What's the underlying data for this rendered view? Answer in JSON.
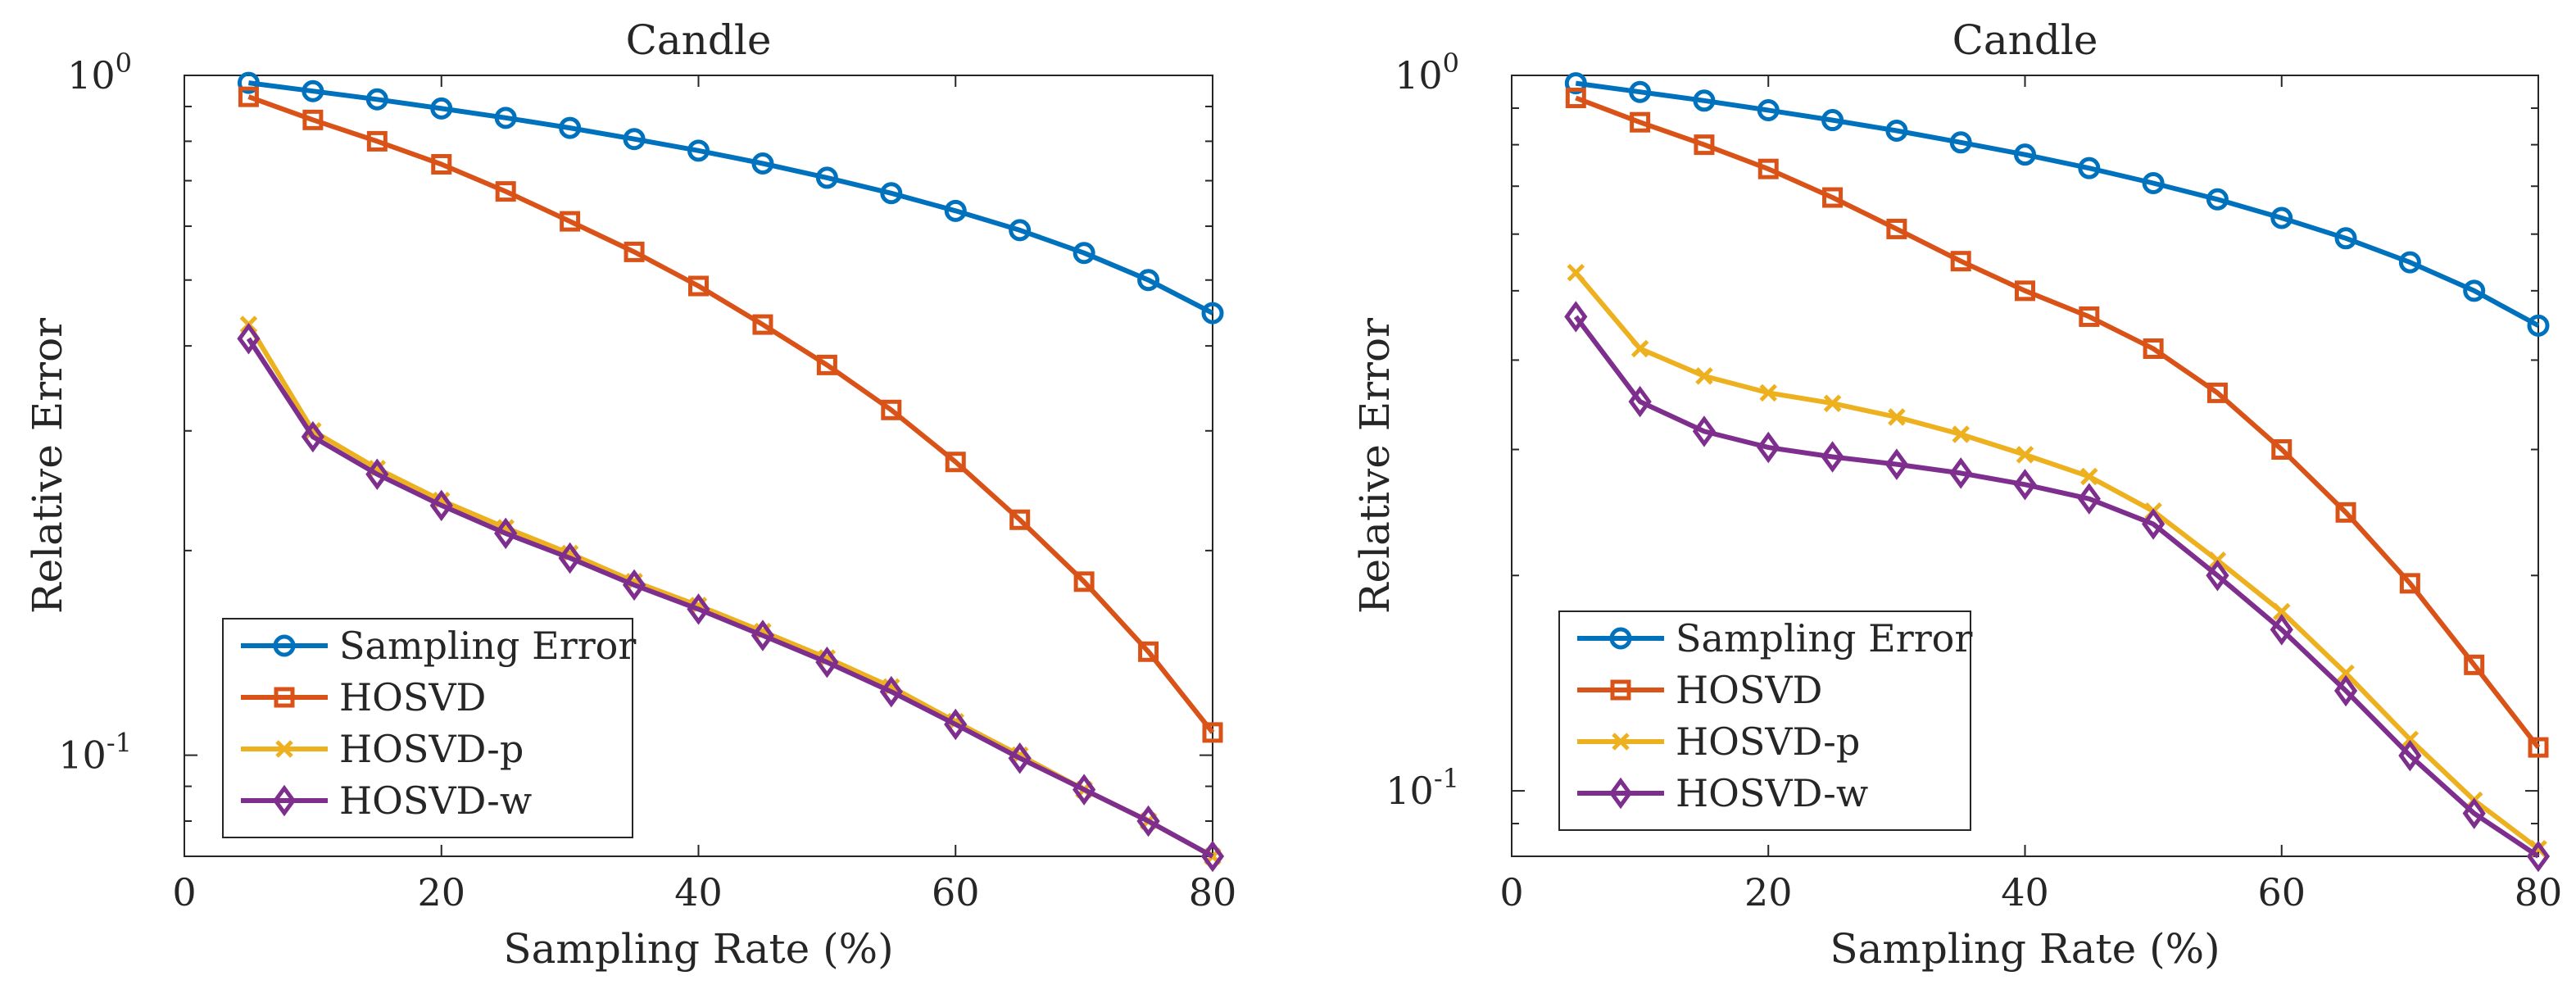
{
  "chart_data": [
    {
      "type": "line",
      "title": "Candle",
      "xlabel": "Sampling Rate (%)",
      "ylabel": "Relative Error",
      "yscale": "log",
      "xlim": [
        0,
        80
      ],
      "ylim": [
        0.071,
        1.0
      ],
      "xticks": [
        0,
        20,
        40,
        60,
        80
      ],
      "xtick_labels": [
        "0",
        "20",
        "40",
        "60",
        "80"
      ],
      "ytick_labels": [
        {
          "base": "10",
          "exp": "0"
        },
        {
          "base": "10",
          "exp": "-1"
        }
      ],
      "legend_position": "bottom-left",
      "x": [
        5,
        10,
        15,
        20,
        25,
        30,
        35,
        40,
        45,
        50,
        55,
        60,
        65,
        70,
        75,
        80
      ],
      "series": [
        {
          "name": "Sampling Error",
          "color": "#0072BD",
          "marker": "circle",
          "values": [
            0.975,
            0.948,
            0.922,
            0.894,
            0.866,
            0.837,
            0.806,
            0.775,
            0.742,
            0.707,
            0.671,
            0.632,
            0.592,
            0.548,
            0.5,
            0.447
          ]
        },
        {
          "name": "HOSVD",
          "color": "#D95319",
          "marker": "square",
          "values": [
            0.93,
            0.86,
            0.8,
            0.74,
            0.675,
            0.61,
            0.55,
            0.49,
            0.43,
            0.375,
            0.322,
            0.27,
            0.222,
            0.18,
            0.142,
            0.108
          ]
        },
        {
          "name": "HOSVD-p",
          "color": "#EDB120",
          "marker": "x",
          "values": [
            0.43,
            0.3,
            0.264,
            0.237,
            0.216,
            0.198,
            0.18,
            0.166,
            0.152,
            0.139,
            0.126,
            0.112,
            0.1,
            0.089,
            0.08,
            0.071
          ]
        },
        {
          "name": "HOSVD-w",
          "color": "#7E2F8E",
          "marker": "diamond",
          "values": [
            0.41,
            0.294,
            0.259,
            0.233,
            0.212,
            0.195,
            0.178,
            0.164,
            0.15,
            0.137,
            0.124,
            0.111,
            0.099,
            0.089,
            0.08,
            0.071
          ]
        }
      ]
    },
    {
      "type": "line",
      "title": "Candle",
      "xlabel": "Sampling Rate (%)",
      "ylabel": "Relative Error",
      "yscale": "log",
      "xlim": [
        0,
        80
      ],
      "ylim": [
        0.081,
        1.0
      ],
      "xticks": [
        0,
        20,
        40,
        60,
        80
      ],
      "xtick_labels": [
        "0",
        "20",
        "40",
        "60",
        "80"
      ],
      "ytick_labels": [
        {
          "base": "10",
          "exp": "0"
        },
        {
          "base": "10",
          "exp": "-1"
        }
      ],
      "legend_position": "bottom-left",
      "x": [
        5,
        10,
        15,
        20,
        25,
        30,
        35,
        40,
        45,
        50,
        55,
        60,
        65,
        70,
        75,
        80
      ],
      "series": [
        {
          "name": "Sampling Error",
          "color": "#0072BD",
          "marker": "circle",
          "values": [
            0.975,
            0.948,
            0.922,
            0.894,
            0.866,
            0.837,
            0.806,
            0.775,
            0.742,
            0.707,
            0.671,
            0.632,
            0.592,
            0.548,
            0.5,
            0.447
          ]
        },
        {
          "name": "HOSVD",
          "color": "#D95319",
          "marker": "square",
          "values": [
            0.93,
            0.86,
            0.8,
            0.74,
            0.675,
            0.61,
            0.55,
            0.5,
            0.46,
            0.415,
            0.36,
            0.3,
            0.245,
            0.195,
            0.15,
            0.115
          ]
        },
        {
          "name": "HOSVD-p",
          "color": "#EDB120",
          "marker": "x",
          "values": [
            0.53,
            0.415,
            0.38,
            0.36,
            0.348,
            0.333,
            0.315,
            0.295,
            0.275,
            0.246,
            0.21,
            0.178,
            0.146,
            0.118,
            0.097,
            0.083
          ]
        },
        {
          "name": "HOSVD-w",
          "color": "#7E2F8E",
          "marker": "diamond",
          "values": [
            0.46,
            0.35,
            0.318,
            0.302,
            0.293,
            0.286,
            0.278,
            0.268,
            0.256,
            0.236,
            0.2,
            0.168,
            0.138,
            0.112,
            0.093,
            0.081
          ]
        }
      ]
    }
  ]
}
